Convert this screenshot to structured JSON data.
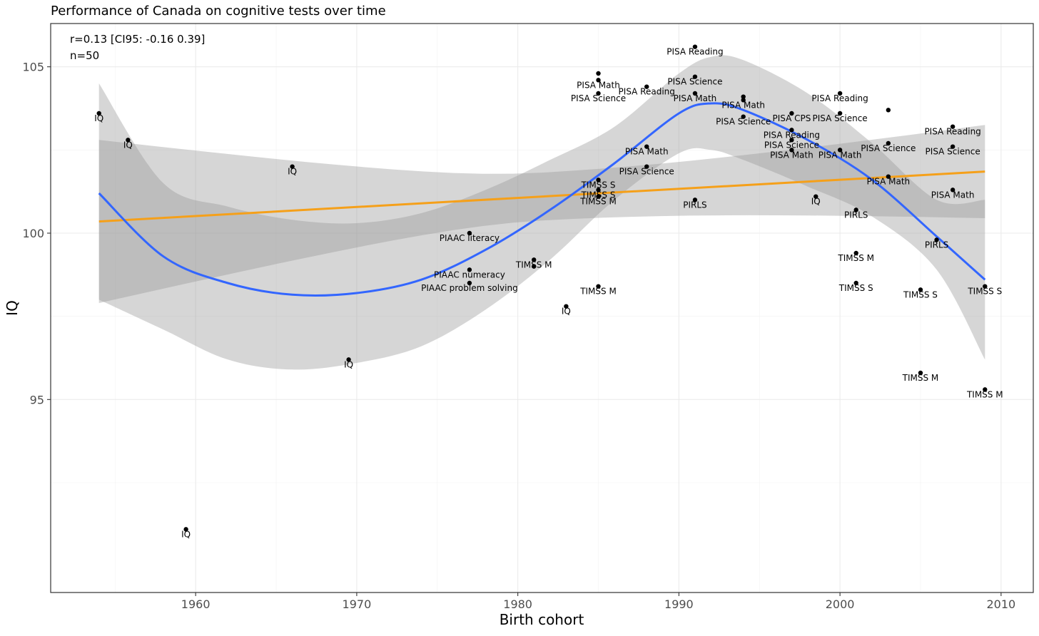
{
  "colors": {
    "loess_line": "#3366ff",
    "linear_line": "#f5a01a",
    "ribbon": "#999999",
    "point": "#000000",
    "panel_border": "#333333",
    "grid": "#ebebeb"
  },
  "chart_data": {
    "type": "scatter",
    "title": "Performance of Canada on cognitive tests over time",
    "xlabel": "Birth cohort",
    "ylabel": "IQ",
    "xlim": [
      1951,
      2012
    ],
    "ylim": [
      89.2,
      106.3
    ],
    "xticks": [
      1960,
      1970,
      1980,
      1990,
      2000,
      2010
    ],
    "yticks": [
      95,
      100,
      105
    ],
    "grid": true,
    "annotations": [
      "r=0.13 [CI95: -0.16 0.39]",
      "n=50"
    ],
    "points": [
      {
        "x": 1954,
        "y": 103.6,
        "label": "IQ"
      },
      {
        "x": 1955.8,
        "y": 102.8,
        "label": "IQ"
      },
      {
        "x": 1959.4,
        "y": 91.1,
        "label": "IQ"
      },
      {
        "x": 1966,
        "y": 102.0,
        "label": "IQ"
      },
      {
        "x": 1969.5,
        "y": 96.2,
        "label": "IQ"
      },
      {
        "x": 1977,
        "y": 100.0,
        "label": "PIAAC literacy"
      },
      {
        "x": 1977,
        "y": 98.9,
        "label": "PIAAC numeracy"
      },
      {
        "x": 1977,
        "y": 98.5,
        "label": "PIAAC problem solving"
      },
      {
        "x": 1981,
        "y": 99.2,
        "label": "TIMSS M"
      },
      {
        "x": 1981,
        "y": 99.0,
        "label": ""
      },
      {
        "x": 1983,
        "y": 97.8,
        "label": "IQ"
      },
      {
        "x": 1985,
        "y": 104.8,
        "label": ""
      },
      {
        "x": 1985,
        "y": 104.6,
        "label": "PISA Math"
      },
      {
        "x": 1985,
        "y": 104.2,
        "label": "PISA Science"
      },
      {
        "x": 1985,
        "y": 101.6,
        "label": "TIMSS S"
      },
      {
        "x": 1985,
        "y": 101.3,
        "label": "TIMSS S"
      },
      {
        "x": 1985,
        "y": 101.1,
        "label": "TIMSS M"
      },
      {
        "x": 1985,
        "y": 98.4,
        "label": "TIMSS M"
      },
      {
        "x": 1988,
        "y": 104.4,
        "label": "PISA Reading"
      },
      {
        "x": 1988,
        "y": 102.6,
        "label": "PISA Math"
      },
      {
        "x": 1988,
        "y": 102.0,
        "label": "PISA Science"
      },
      {
        "x": 1991,
        "y": 105.6,
        "label": "PISA Reading"
      },
      {
        "x": 1991,
        "y": 104.7,
        "label": "PISA Science"
      },
      {
        "x": 1991,
        "y": 104.2,
        "label": "PISA Math"
      },
      {
        "x": 1991,
        "y": 101.0,
        "label": "PIRLS"
      },
      {
        "x": 1994,
        "y": 104.1,
        "label": ""
      },
      {
        "x": 1994,
        "y": 104.0,
        "label": "PISA Math"
      },
      {
        "x": 1994,
        "y": 103.5,
        "label": "PISA Science"
      },
      {
        "x": 1997,
        "y": 103.6,
        "label": "PISA CPS"
      },
      {
        "x": 1997,
        "y": 103.1,
        "label": "PISA Reading"
      },
      {
        "x": 1997,
        "y": 102.8,
        "label": "PISA Science"
      },
      {
        "x": 1997,
        "y": 102.5,
        "label": "PISA Math"
      },
      {
        "x": 1998.5,
        "y": 101.1,
        "label": "IQ"
      },
      {
        "x": 2000,
        "y": 104.2,
        "label": "PISA Reading"
      },
      {
        "x": 2000,
        "y": 103.6,
        "label": "PISA Science"
      },
      {
        "x": 2000,
        "y": 102.5,
        "label": "PISA Math"
      },
      {
        "x": 2001,
        "y": 100.7,
        "label": "PIRLS"
      },
      {
        "x": 2001,
        "y": 99.4,
        "label": "TIMSS M"
      },
      {
        "x": 2001,
        "y": 98.5,
        "label": "TIMSS S"
      },
      {
        "x": 2003,
        "y": 103.7,
        "label": ""
      },
      {
        "x": 2003,
        "y": 102.7,
        "label": "PISA Science"
      },
      {
        "x": 2003,
        "y": 101.7,
        "label": "PISA Math"
      },
      {
        "x": 2005,
        "y": 98.3,
        "label": "TIMSS S"
      },
      {
        "x": 2005,
        "y": 95.8,
        "label": "TIMSS M"
      },
      {
        "x": 2006,
        "y": 99.8,
        "label": "PIRLS"
      },
      {
        "x": 2007,
        "y": 103.2,
        "label": "PISA Reading"
      },
      {
        "x": 2007,
        "y": 102.6,
        "label": "PISA Science"
      },
      {
        "x": 2007,
        "y": 101.3,
        "label": "PISA Math"
      },
      {
        "x": 2009,
        "y": 98.4,
        "label": "TIMSS S"
      },
      {
        "x": 2009,
        "y": 95.3,
        "label": "TIMSS M"
      }
    ],
    "loess_fit": {
      "x": [
        1954,
        1958,
        1962,
        1966,
        1970,
        1974,
        1978,
        1982,
        1986,
        1990,
        1992,
        1994,
        1998,
        2002,
        2006,
        2009
      ],
      "y": [
        101.2,
        99.3,
        98.5,
        98.15,
        98.2,
        98.6,
        99.5,
        100.7,
        102.1,
        103.6,
        103.9,
        103.7,
        102.8,
        101.6,
        99.9,
        98.6
      ],
      "lower": [
        98.0,
        97.1,
        96.2,
        95.9,
        96.1,
        96.6,
        97.7,
        99.2,
        101.0,
        102.4,
        102.5,
        102.2,
        101.4,
        100.5,
        98.9,
        96.2
      ],
      "upper": [
        104.5,
        101.5,
        100.8,
        100.4,
        100.3,
        100.6,
        101.3,
        102.2,
        103.2,
        104.8,
        105.3,
        105.2,
        104.2,
        102.7,
        101.0,
        101.0
      ]
    },
    "linear_fit": {
      "x": [
        1954,
        2009
      ],
      "y": [
        100.35,
        101.85
      ],
      "lower_ci": [
        97.95,
        100.45
      ],
      "upper_ci": [
        102.8,
        103.25
      ]
    }
  }
}
